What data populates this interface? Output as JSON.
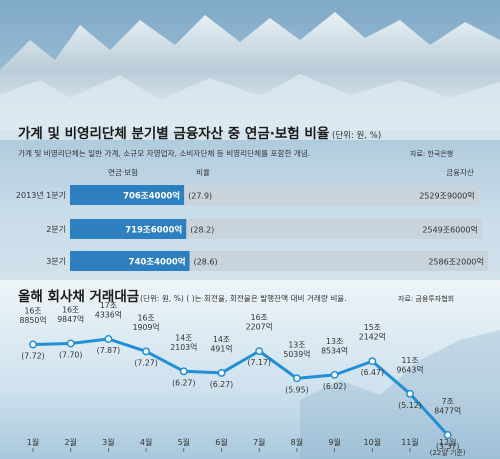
{
  "colors": {
    "bar_blue": "#2d7fbf",
    "bar_grey": "#c9d3db",
    "line": "#1f8fd6",
    "title": "#1a1a1a",
    "text": "#333333"
  },
  "header_image": {
    "description_icon": "glacier-photo"
  },
  "bar_section": {
    "title": "가계 및 비영리단체 분기별 금융자산 중 연금·보험 비율",
    "unit": "(단위: 원, %)",
    "note": "가계 및 비영리단체는 일반 가계, 소규모 자영업자, 소비자단체 등 비영리단체를 포함한 개념.",
    "source": "자료: 한국은행",
    "legend": {
      "pension": "연금·보험",
      "ratio": "비율",
      "total": "금융자산"
    }
  },
  "line_section": {
    "title": "올해 회사채 거래대금",
    "unit": "(단위: 원, %) ( )는 회전율, 회전율은 발행잔액 대비 거래량 비율.",
    "source": "자료: 금융투자협회"
  },
  "chart_data": [
    {
      "type": "bar",
      "categories": [
        "2013년 1분기",
        "2분기",
        "3분기"
      ],
      "series": [
        {
          "name": "연금·보험",
          "values": [
            706.4,
            719.6,
            740.4
          ],
          "labels": [
            "706조4000억",
            "719조6000억",
            "740조4000억"
          ]
        },
        {
          "name": "금융자산",
          "values": [
            2529.9,
            2549.6,
            2586.2
          ],
          "labels": [
            "2529조9000억",
            "2549조6000억",
            "2586조2000억"
          ]
        }
      ],
      "ratio": {
        "name": "비율",
        "values": [
          27.9,
          28.2,
          28.6
        ],
        "labels": [
          "(27.9)",
          "(28.2)",
          "(28.6)"
        ]
      }
    },
    {
      "type": "line",
      "categories": [
        "1월",
        "2월",
        "3월",
        "4월",
        "5월",
        "6월",
        "7월",
        "8월",
        "9월",
        "10월",
        "11월",
        "12월"
      ],
      "category_note": "(22일 기준)",
      "series": [
        {
          "name": "거래대금",
          "values": [
            168850,
            169847,
            174336,
            161909,
            142103,
            140491,
            162207,
            135039,
            138534,
            152142,
            119643,
            78477
          ],
          "labels": [
            [
              "16조",
              "8850억"
            ],
            [
              "16조",
              "9847억"
            ],
            [
              "17조",
              "4336억"
            ],
            [
              "16조",
              "1909억"
            ],
            [
              "14조",
              "2103억"
            ],
            [
              "14조",
              "491억"
            ],
            [
              "16조",
              "2207억"
            ],
            [
              "13조",
              "5039억"
            ],
            [
              "13조",
              "8534억"
            ],
            [
              "15조",
              "2142억"
            ],
            [
              "11조",
              "9643억"
            ],
            [
              "7조",
              "8477억"
            ]
          ]
        }
      ],
      "turnover": [
        7.72,
        7.7,
        7.87,
        7.27,
        6.27,
        6.27,
        7.17,
        5.95,
        6.02,
        6.47,
        5.12,
        3.37
      ],
      "turnover_labels": [
        "(7.72)",
        "(7.70)",
        "(7.87)",
        "(7.27)",
        "(6.27)",
        "(6.27)",
        "(7.17)",
        "(5.95)",
        "(6.02)",
        "(6.47)",
        "(5.12)",
        "(3.37)"
      ]
    }
  ]
}
